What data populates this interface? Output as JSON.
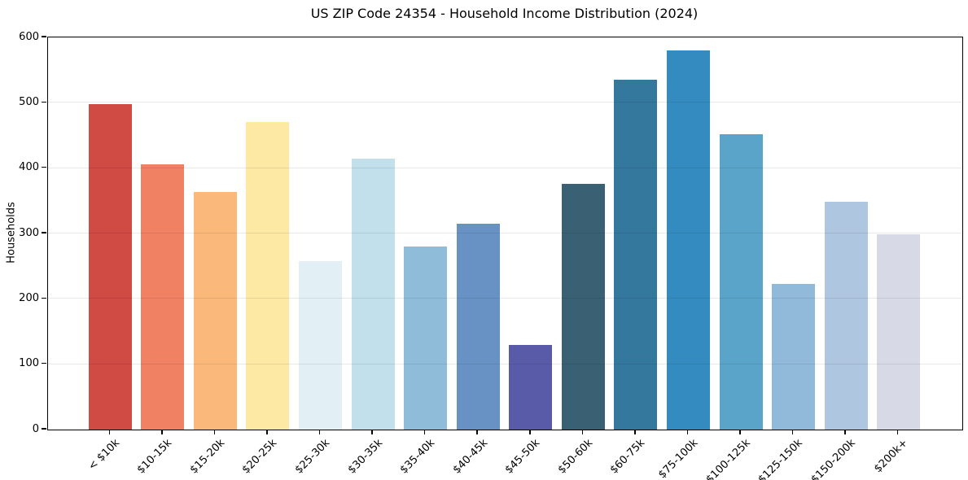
{
  "chart_data": {
    "type": "bar",
    "title": "US ZIP Code 24354 - Household Income Distribution (2024)",
    "xlabel": "",
    "ylabel": "Households",
    "categories": [
      "< $10k",
      "$10-15k",
      "$15-20k",
      "$20-25k",
      "$25-30k",
      "$30-35k",
      "$35-40k",
      "$40-45k",
      "$45-50k",
      "$50-60k",
      "$60-75k",
      "$75-100k",
      "$100-125k",
      "$125-150k",
      "$150-200k",
      "$200k+"
    ],
    "values": [
      498,
      406,
      363,
      470,
      258,
      414,
      280,
      315,
      129,
      376,
      535,
      580,
      452,
      223,
      348,
      299
    ],
    "colors": [
      "#cf4b44",
      "#f08163",
      "#fab97a",
      "#fde8a4",
      "#e2f0f6",
      "#c1e0eb",
      "#8fbcd9",
      "#6892c4",
      "#5a5ba8",
      "#3a6173",
      "#35789e",
      "#348bc0",
      "#5ba4c9",
      "#91b9da",
      "#aec6e0",
      "#d7d9e7"
    ],
    "ylim": [
      0,
      600
    ],
    "yticks": [
      0,
      100,
      200,
      300,
      400,
      500,
      600
    ],
    "grid": "horizontal",
    "legend": "none",
    "background": "#ffffff",
    "axis_color": "#000000"
  }
}
